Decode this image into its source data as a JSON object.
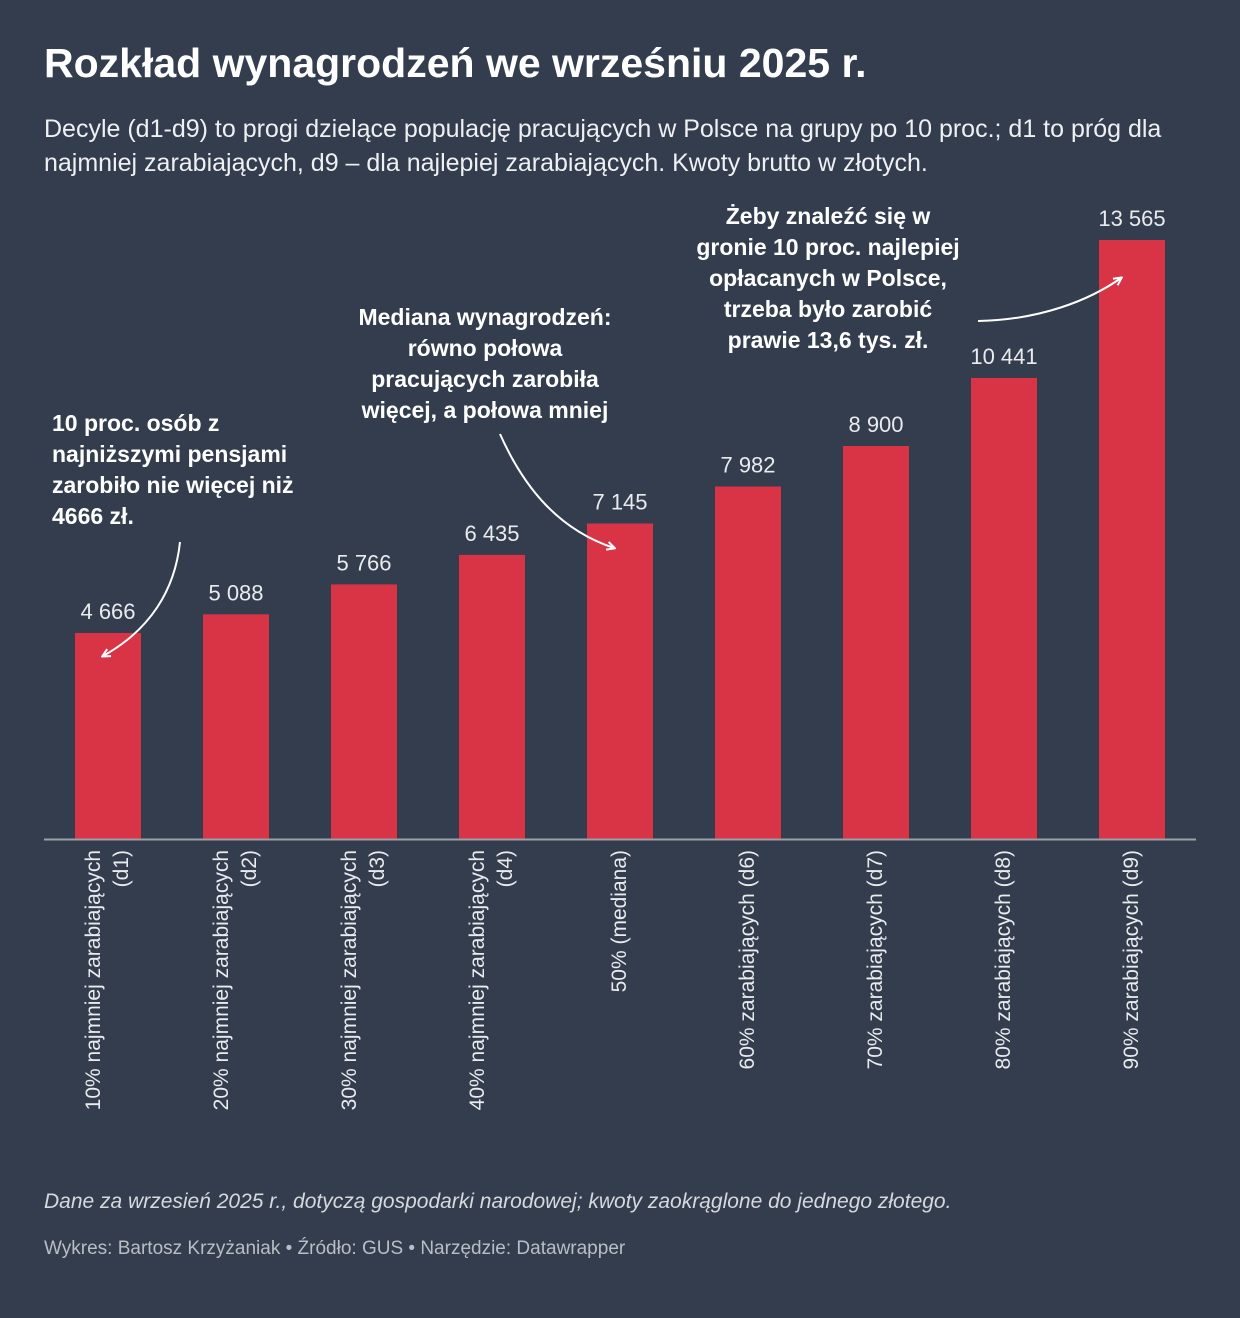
{
  "header": {
    "title": "Rozkład wynagrodzeń we wrześniu 2025 r.",
    "subtitle": "Decyle (d1-d9) to progi dzielące populację pracujących w Polsce na grupy po 10 proc.; d1 to próg dla najmniej zarabiających, d9 – dla najlepiej zarabiających. Kwoty brutto w złotych."
  },
  "chart_data": {
    "type": "bar",
    "title": "Rozkład wynagrodzeń we wrześniu 2025 r.",
    "xlabel": "",
    "ylabel": "",
    "ylim": [
      0,
      13565
    ],
    "grid": false,
    "categories": [
      [
        "10% najmniej zarabiających",
        "(d1)"
      ],
      [
        "20% najmniej zarabiających",
        "(d2)"
      ],
      [
        "30% najmniej zarabiających",
        "(d3)"
      ],
      [
        "40% najmniej zarabiających",
        "(d4)"
      ],
      [
        "50% (mediana)"
      ],
      [
        "60% zarabiających (d6)"
      ],
      [
        "70% zarabiających (d7)"
      ],
      [
        "80% zarabiających (d8)"
      ],
      [
        "90% zarabiających (d9)"
      ]
    ],
    "values": [
      4666,
      5088,
      5766,
      6435,
      7145,
      7982,
      8900,
      10441,
      13565
    ],
    "value_labels": [
      "4 666",
      "5 088",
      "5 766",
      "6 435",
      "7 145",
      "7 982",
      "8 900",
      "10 441",
      "13 565"
    ],
    "bar_color": "#d93346",
    "annotations": [
      {
        "text": [
          "10 proc. osób z",
          "najniższymi pensjami",
          "zarobiło nie więcej niż",
          "4666 zł."
        ],
        "target": "d1"
      },
      {
        "text": [
          "Mediana wynagrodzeń:",
          "równo połowa",
          "pracujących zarobiła",
          "więcej, a połowa mniej"
        ],
        "target": "d5"
      },
      {
        "text": [
          "Żeby znaleźć się w",
          "gronie 10 proc. najlepiej",
          "opłacanych w Polsce,",
          "trzeba było zarobić",
          "prawie 13,6 tys. zł."
        ],
        "target": "d9"
      }
    ]
  },
  "footer": {
    "note": "Dane za wrzesień 2025 r., dotyczą gospodarki narodowej; kwoty zaokrąglone do jednego złotego.",
    "credits": "Wykres: Bartosz Krzyżaniak • Źródło: GUS • Narzędzie: Datawrapper"
  }
}
